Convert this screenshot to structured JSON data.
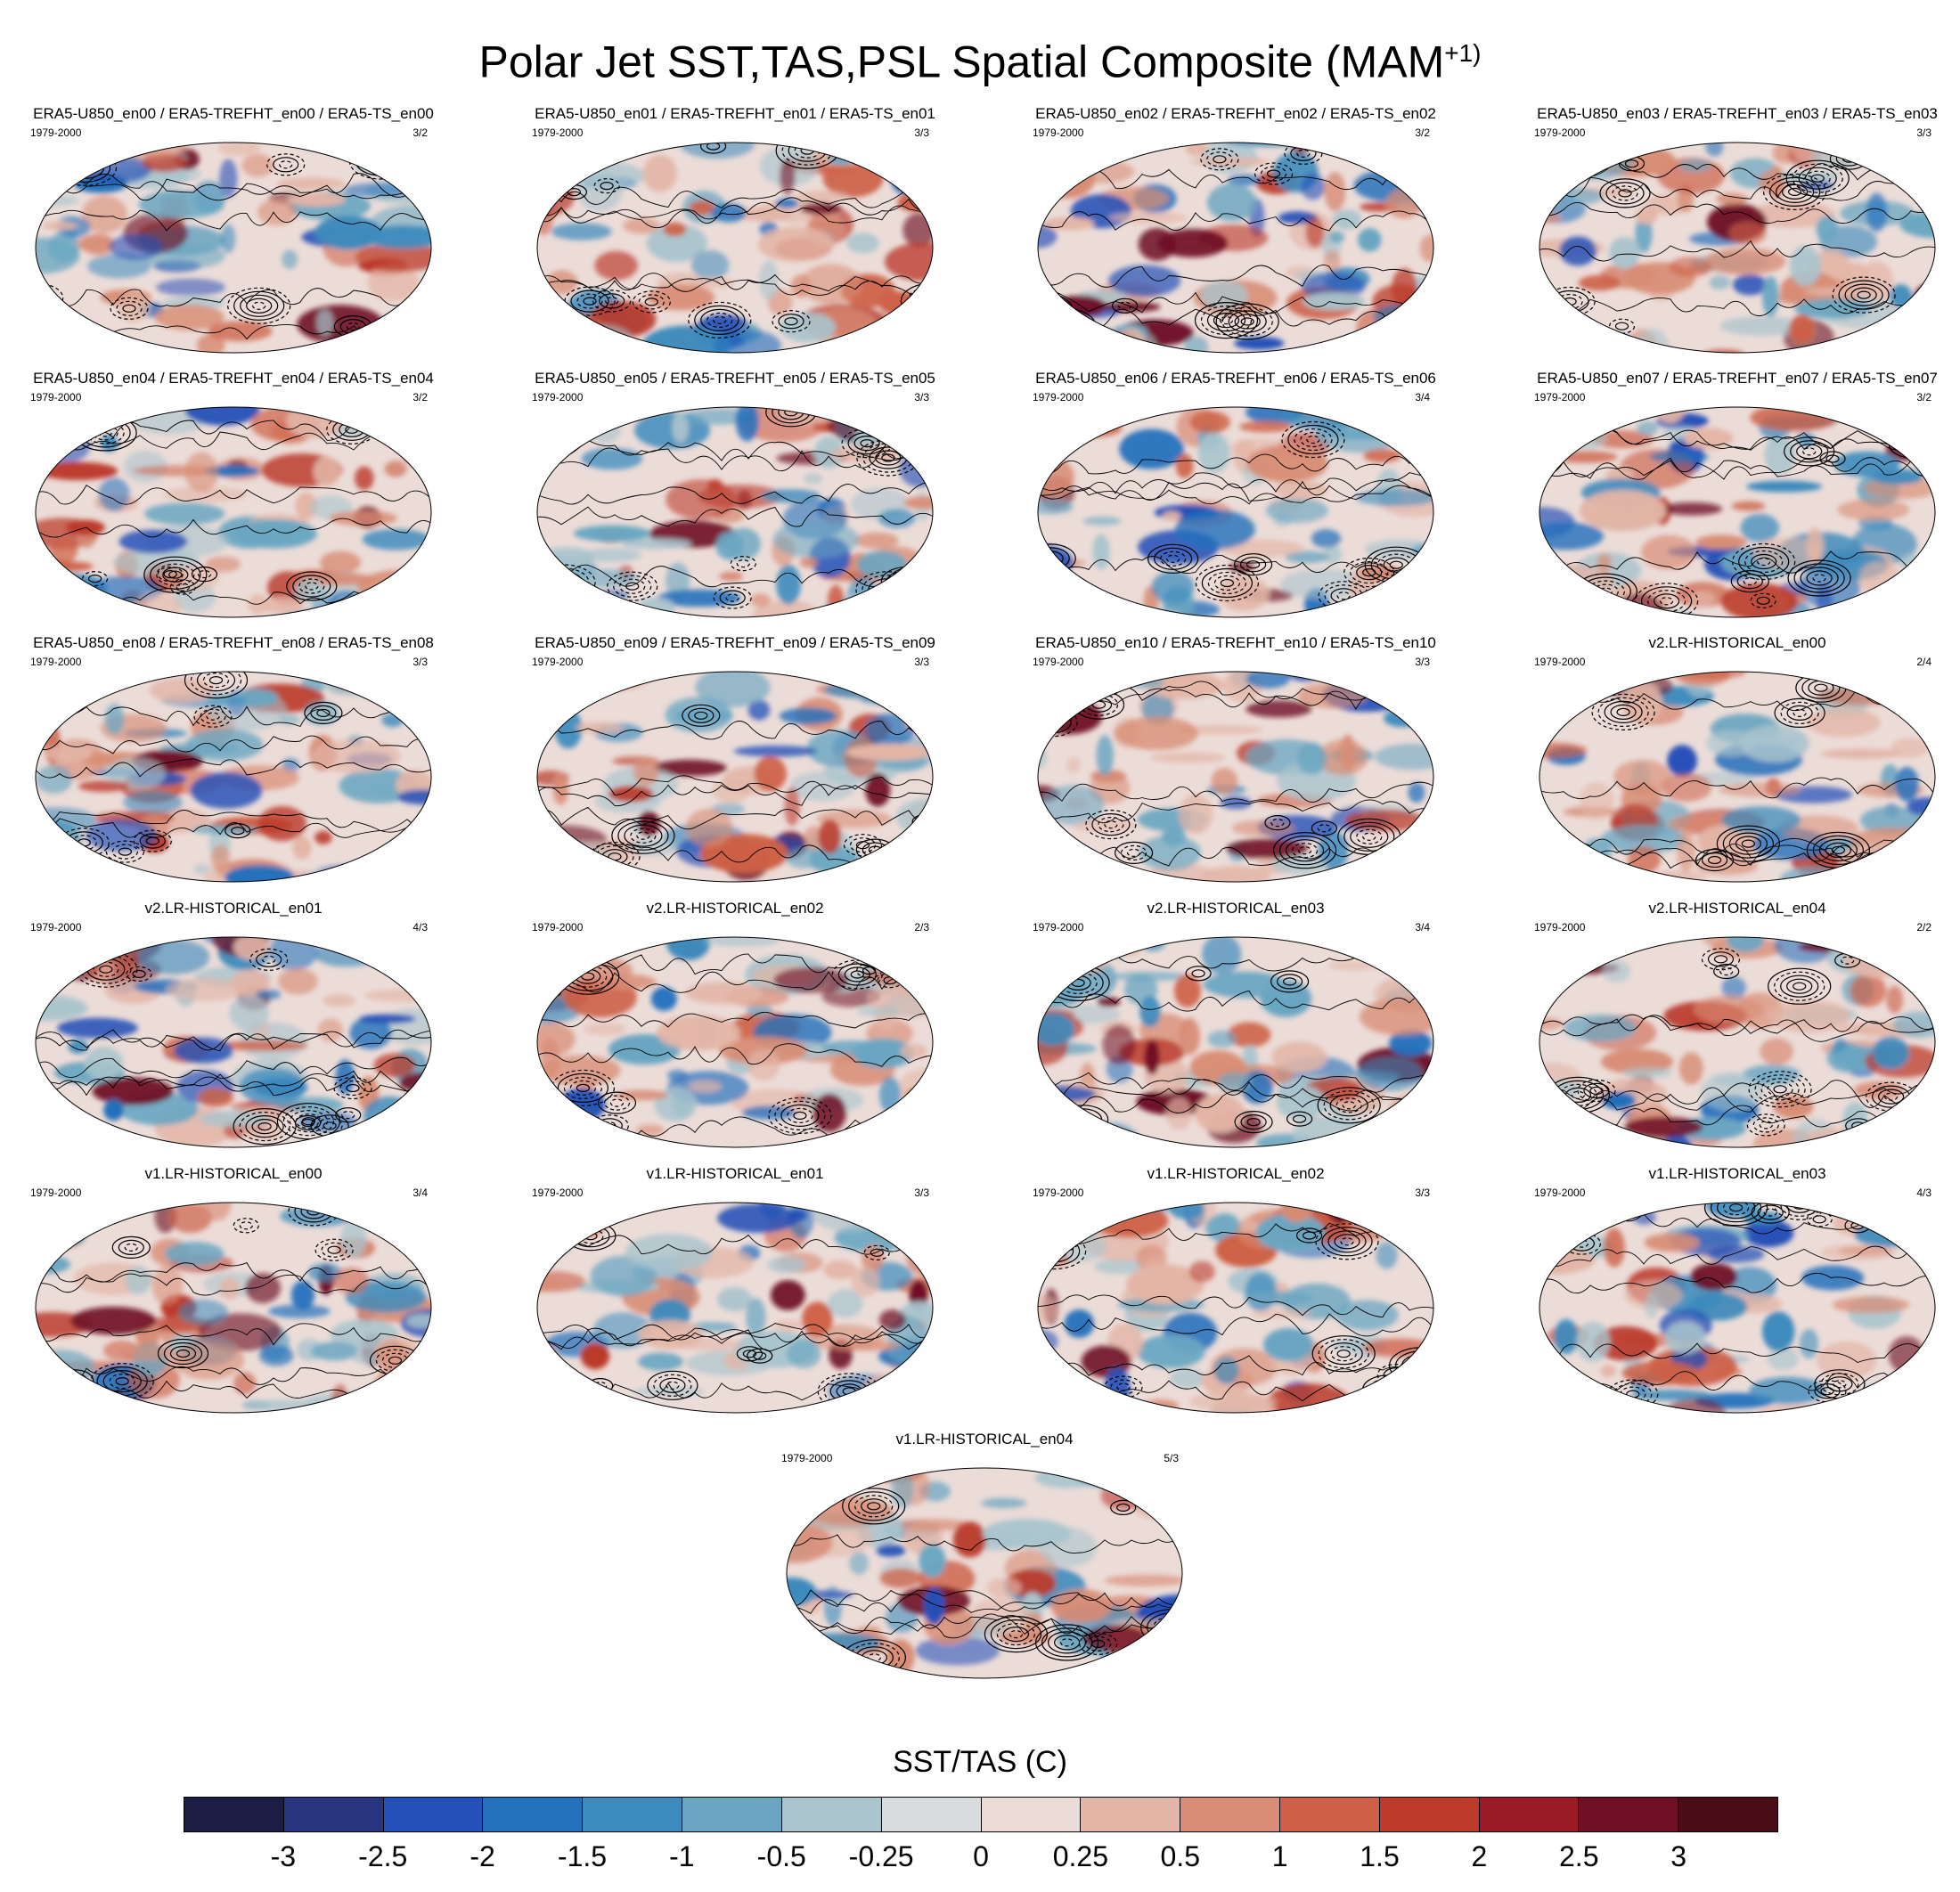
{
  "figure": {
    "title": "Polar Jet SST,TAS,PSL Spatial Composite (MAM",
    "title_superscript": "+1)",
    "colorbar_title": "SST/TAS (C)"
  },
  "panels": [
    {
      "title": "ERA5-U850_en00 / ERA5-TREFHT_en00 / ERA5-TS_en00",
      "years": "1979-2000",
      "ratio": "3/2"
    },
    {
      "title": "ERA5-U850_en01 / ERA5-TREFHT_en01 / ERA5-TS_en01",
      "years": "1979-2000",
      "ratio": "3/3"
    },
    {
      "title": "ERA5-U850_en02 / ERA5-TREFHT_en02 / ERA5-TS_en02",
      "years": "1979-2000",
      "ratio": "3/2"
    },
    {
      "title": "ERA5-U850_en03 / ERA5-TREFHT_en03 / ERA5-TS_en03",
      "years": "1979-2000",
      "ratio": "3/3"
    },
    {
      "title": "ERA5-U850_en04 / ERA5-TREFHT_en04 / ERA5-TS_en04",
      "years": "1979-2000",
      "ratio": "3/2"
    },
    {
      "title": "ERA5-U850_en05 / ERA5-TREFHT_en05 / ERA5-TS_en05",
      "years": "1979-2000",
      "ratio": "3/3"
    },
    {
      "title": "ERA5-U850_en06 / ERA5-TREFHT_en06 / ERA5-TS_en06",
      "years": "1979-2000",
      "ratio": "3/4"
    },
    {
      "title": "ERA5-U850_en07 / ERA5-TREFHT_en07 / ERA5-TS_en07",
      "years": "1979-2000",
      "ratio": "3/2"
    },
    {
      "title": "ERA5-U850_en08 / ERA5-TREFHT_en08 / ERA5-TS_en08",
      "years": "1979-2000",
      "ratio": "3/3"
    },
    {
      "title": "ERA5-U850_en09 / ERA5-TREFHT_en09 / ERA5-TS_en09",
      "years": "1979-2000",
      "ratio": "3/3"
    },
    {
      "title": "ERA5-U850_en10 / ERA5-TREFHT_en10 / ERA5-TS_en10",
      "years": "1979-2000",
      "ratio": "3/3"
    },
    {
      "title": "v2.LR-HISTORICAL_en00",
      "years": "1979-2000",
      "ratio": "2/4"
    },
    {
      "title": "v2.LR-HISTORICAL_en01",
      "years": "1979-2000",
      "ratio": "4/3"
    },
    {
      "title": "v2.LR-HISTORICAL_en02",
      "years": "1979-2000",
      "ratio": "2/3"
    },
    {
      "title": "v2.LR-HISTORICAL_en03",
      "years": "1979-2000",
      "ratio": "3/4"
    },
    {
      "title": "v2.LR-HISTORICAL_en04",
      "years": "1979-2000",
      "ratio": "2/2"
    },
    {
      "title": "v1.LR-HISTORICAL_en00",
      "years": "1979-2000",
      "ratio": "3/4"
    },
    {
      "title": "v1.LR-HISTORICAL_en01",
      "years": "1979-2000",
      "ratio": "3/3"
    },
    {
      "title": "v1.LR-HISTORICAL_en02",
      "years": "1979-2000",
      "ratio": "3/3"
    },
    {
      "title": "v1.LR-HISTORICAL_en03",
      "years": "1979-2000",
      "ratio": "4/3"
    },
    {
      "title": "v1.LR-HISTORICAL_en04",
      "years": "1979-2000",
      "ratio": "5/3"
    }
  ],
  "colorbar": {
    "colors": [
      "#1b1d45",
      "#2a3580",
      "#2450b8",
      "#2370bc",
      "#3d8bbd",
      "#6aa6c2",
      "#a9c4cd",
      "#d9dcdf",
      "#ecdcd8",
      "#e3b5a6",
      "#d88c74",
      "#cd6046",
      "#bb3a2a",
      "#9a1b26",
      "#6e0f25",
      "#4a0d17"
    ],
    "labels": [
      "-3",
      "-2.5",
      "-2",
      "-1.5",
      "-1",
      "-0.5",
      "-0.25",
      "0",
      "0.25",
      "0.5",
      "1",
      "1.5",
      "2",
      "2.5",
      "3"
    ]
  }
}
